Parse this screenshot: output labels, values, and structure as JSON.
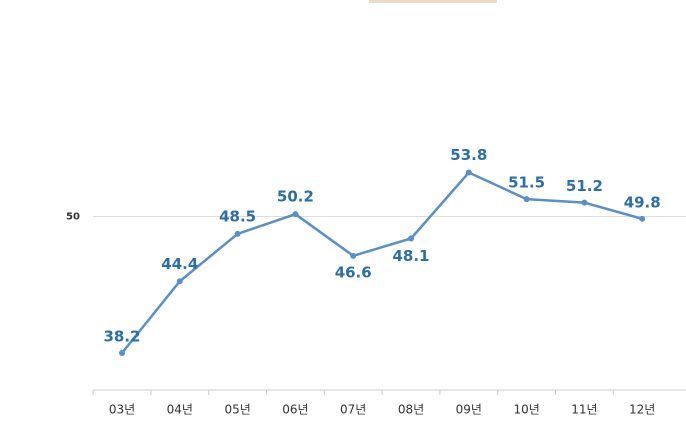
{
  "chart_data": {
    "type": "line",
    "categories": [
      "03년",
      "04년",
      "05년",
      "06년",
      "07년",
      "08년",
      "09년",
      "10년",
      "11년",
      "12년"
    ],
    "values": [
      38.2,
      44.4,
      48.5,
      50.2,
      46.6,
      48.1,
      53.8,
      51.5,
      51.2,
      49.8
    ],
    "color": "#5b8fc7",
    "ylim": [
      35,
      65
    ],
    "yticks": [
      50
    ],
    "grid": true
  }
}
